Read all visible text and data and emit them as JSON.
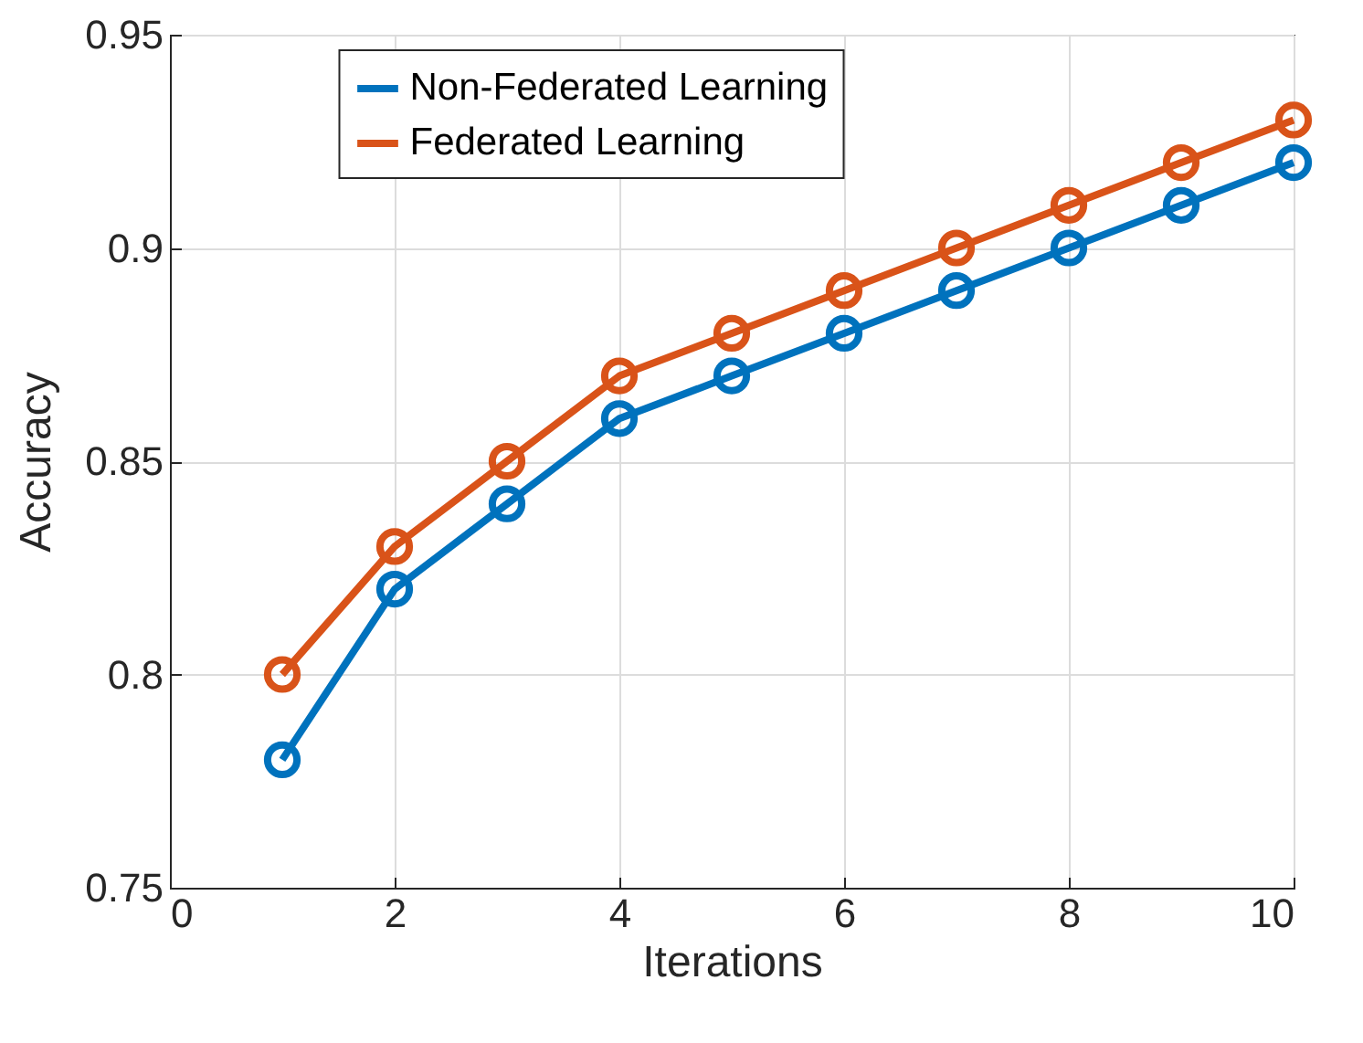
{
  "chart_data": {
    "type": "line",
    "xlabel": "Iterations",
    "ylabel": "Accuracy",
    "x": [
      1,
      2,
      3,
      4,
      5,
      6,
      7,
      8,
      9,
      10
    ],
    "series": [
      {
        "name": "Non-Federated Learning",
        "color": "#0072bd",
        "values": [
          0.78,
          0.82,
          0.84,
          0.86,
          0.87,
          0.88,
          0.89,
          0.9,
          0.91,
          0.92
        ]
      },
      {
        "name": "Federated Learning",
        "color": "#d95319",
        "values": [
          0.8,
          0.83,
          0.85,
          0.87,
          0.88,
          0.89,
          0.9,
          0.91,
          0.92,
          0.93
        ]
      }
    ],
    "xlim": [
      0,
      10
    ],
    "xticks": [
      0,
      2,
      4,
      6,
      8,
      10
    ],
    "ylim": [
      0.75,
      0.95
    ],
    "yticks": [
      0.75,
      0.8,
      0.85,
      0.9,
      0.95
    ],
    "grid": true,
    "legend": "top",
    "marker": "circle",
    "line_style": "solid"
  }
}
